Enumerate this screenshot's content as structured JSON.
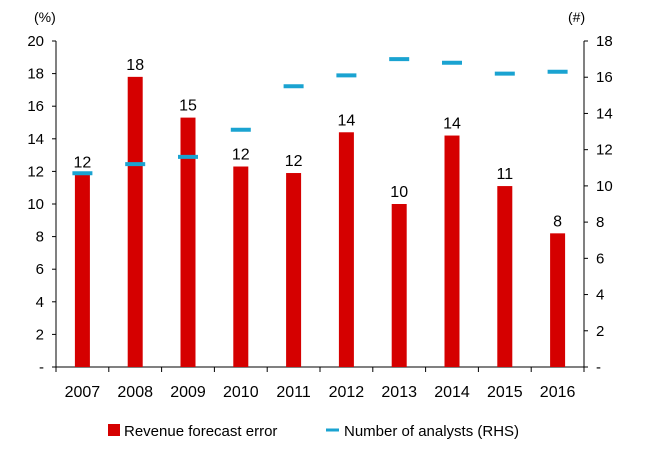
{
  "chart_data": {
    "type": "bar",
    "categories": [
      "2007",
      "2008",
      "2009",
      "2010",
      "2011",
      "2012",
      "2013",
      "2014",
      "2015",
      "2016"
    ],
    "series": [
      {
        "name": "Revenue forecast error",
        "kind": "bar",
        "axis": "left",
        "color": "#d50000",
        "values": [
          11.8,
          17.8,
          15.3,
          12.3,
          11.9,
          14.4,
          10.0,
          14.2,
          11.1,
          8.2
        ],
        "data_labels": [
          "12",
          "18",
          "15",
          "12",
          "12",
          "14",
          "10",
          "14",
          "11",
          "8"
        ]
      },
      {
        "name": "Number of analysts (RHS)",
        "kind": "dash-marker",
        "axis": "right",
        "color": "#1aa3d1",
        "values": [
          10.7,
          11.2,
          11.6,
          13.1,
          15.5,
          16.1,
          17.0,
          16.8,
          16.2,
          16.3
        ]
      }
    ],
    "y_left": {
      "label": "(%)",
      "ylim": [
        0,
        20
      ],
      "ticks": [
        "-",
        "2",
        "4",
        "6",
        "8",
        "10",
        "12",
        "14",
        "16",
        "18",
        "20"
      ]
    },
    "y_right": {
      "label": "(#)",
      "ylim": [
        0,
        18
      ],
      "ticks": [
        "-",
        "2",
        "4",
        "6",
        "8",
        "10",
        "12",
        "14",
        "16",
        "18"
      ]
    },
    "legend": {
      "placement": "bottom"
    },
    "grid": false
  }
}
